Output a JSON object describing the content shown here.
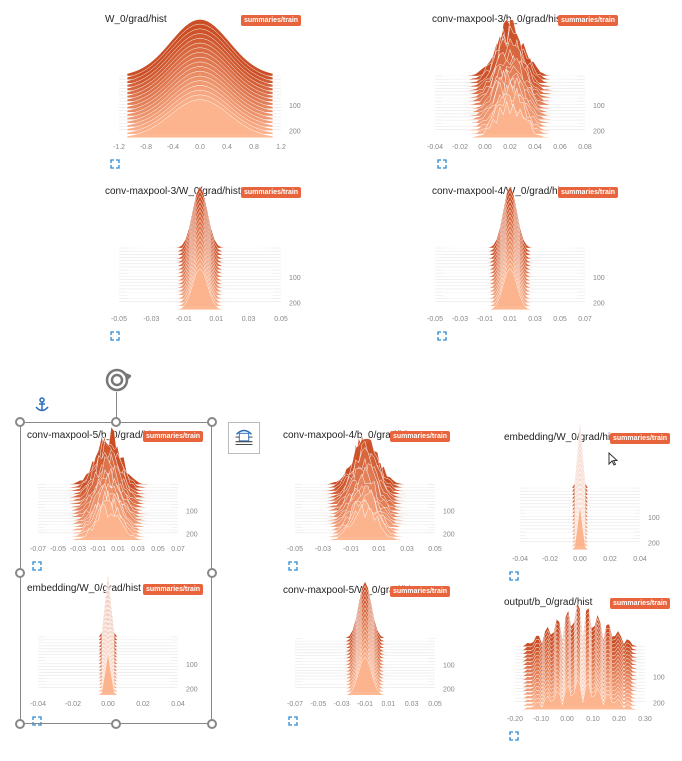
{
  "cards": [
    {
      "title": "W_0/grad/hist",
      "tag": "summaries/train",
      "xticks": [
        "-1.2",
        "-0.8",
        "-0.4",
        "0.0",
        "0.4",
        "0.8",
        "1.2"
      ],
      "yticks": [
        "100",
        "200"
      ],
      "shape": "wide"
    },
    {
      "title": "conv-maxpool-3/b_0/grad/hist",
      "tag": "summaries/train",
      "xticks": [
        "-0.04",
        "-0.02",
        "0.00",
        "0.02",
        "0.04",
        "0.06",
        "0.08"
      ],
      "yticks": [
        "100",
        "200"
      ],
      "shape": "spiky"
    },
    {
      "title": "conv-maxpool-3/W_0/grad/hist",
      "tag": "summaries/train",
      "xticks": [
        "-0.05",
        "-0.03",
        "-0.01",
        "0.01",
        "0.03",
        "0.05"
      ],
      "yticks": [
        "100",
        "200"
      ],
      "shape": "narrow"
    },
    {
      "title": "conv-maxpool-4/W_0/grad/hist",
      "tag": "summaries/train",
      "xticks": [
        "-0.05",
        "-0.03",
        "-0.01",
        "0.01",
        "0.03",
        "0.05",
        "0.07"
      ],
      "yticks": [
        "100",
        "200"
      ],
      "shape": "narrow"
    },
    {
      "title": "conv-maxpool-5/b_0/grad/hist",
      "tag": "summaries/train",
      "xticks": [
        "-0.07",
        "-0.05",
        "-0.03",
        "-0.01",
        "0.01",
        "0.03",
        "0.05",
        "0.07"
      ],
      "yticks": [
        "100",
        "200"
      ],
      "shape": "spiky"
    },
    {
      "title": "conv-maxpool-4/b_0/grad/hist",
      "tag": "summaries/train",
      "xticks": [
        "-0.05",
        "-0.03",
        "-0.01",
        "0.01",
        "0.03",
        "0.05"
      ],
      "yticks": [
        "100",
        "200"
      ],
      "shape": "spiky"
    },
    {
      "title": "embedding/W_0/grad/hist",
      "tag": "summaries/train",
      "xticks": [
        "-0.04",
        "-0.02",
        "0.00",
        "0.02",
        "0.04"
      ],
      "yticks": [
        "100",
        "200"
      ],
      "shape": "needle"
    },
    {
      "title": "embedding/W_0/grad/hist",
      "tag": "summaries/train",
      "xticks": [
        "-0.04",
        "-0.02",
        "0.00",
        "0.02",
        "0.04"
      ],
      "yticks": [
        "100",
        "200"
      ],
      "shape": "needle"
    },
    {
      "title": "conv-maxpool-5/W_0/grad/hist",
      "tag": "summaries/train",
      "xticks": [
        "-0.07",
        "-0.05",
        "-0.03",
        "-0.01",
        "0.01",
        "0.03",
        "0.05"
      ],
      "yticks": [
        "100",
        "200"
      ],
      "shape": "narrow"
    },
    {
      "title": "output/b_0/grad/hist",
      "tag": "summaries/train",
      "xticks": [
        "-0.20",
        "-0.10",
        "0.00",
        "0.10",
        "0.20",
        "0.30"
      ],
      "yticks": [
        "100",
        "200"
      ],
      "shape": "multi"
    }
  ],
  "colors": {
    "dark": "#c8461c",
    "light": "#fdb58f",
    "tag": "#e8643c"
  },
  "icons": {
    "expand": "expand-icon",
    "rotate": "rotate-icon",
    "anchor": "anchor-icon",
    "layout": "layout-options-icon",
    "cursor": "cursor-arrow-icon"
  }
}
